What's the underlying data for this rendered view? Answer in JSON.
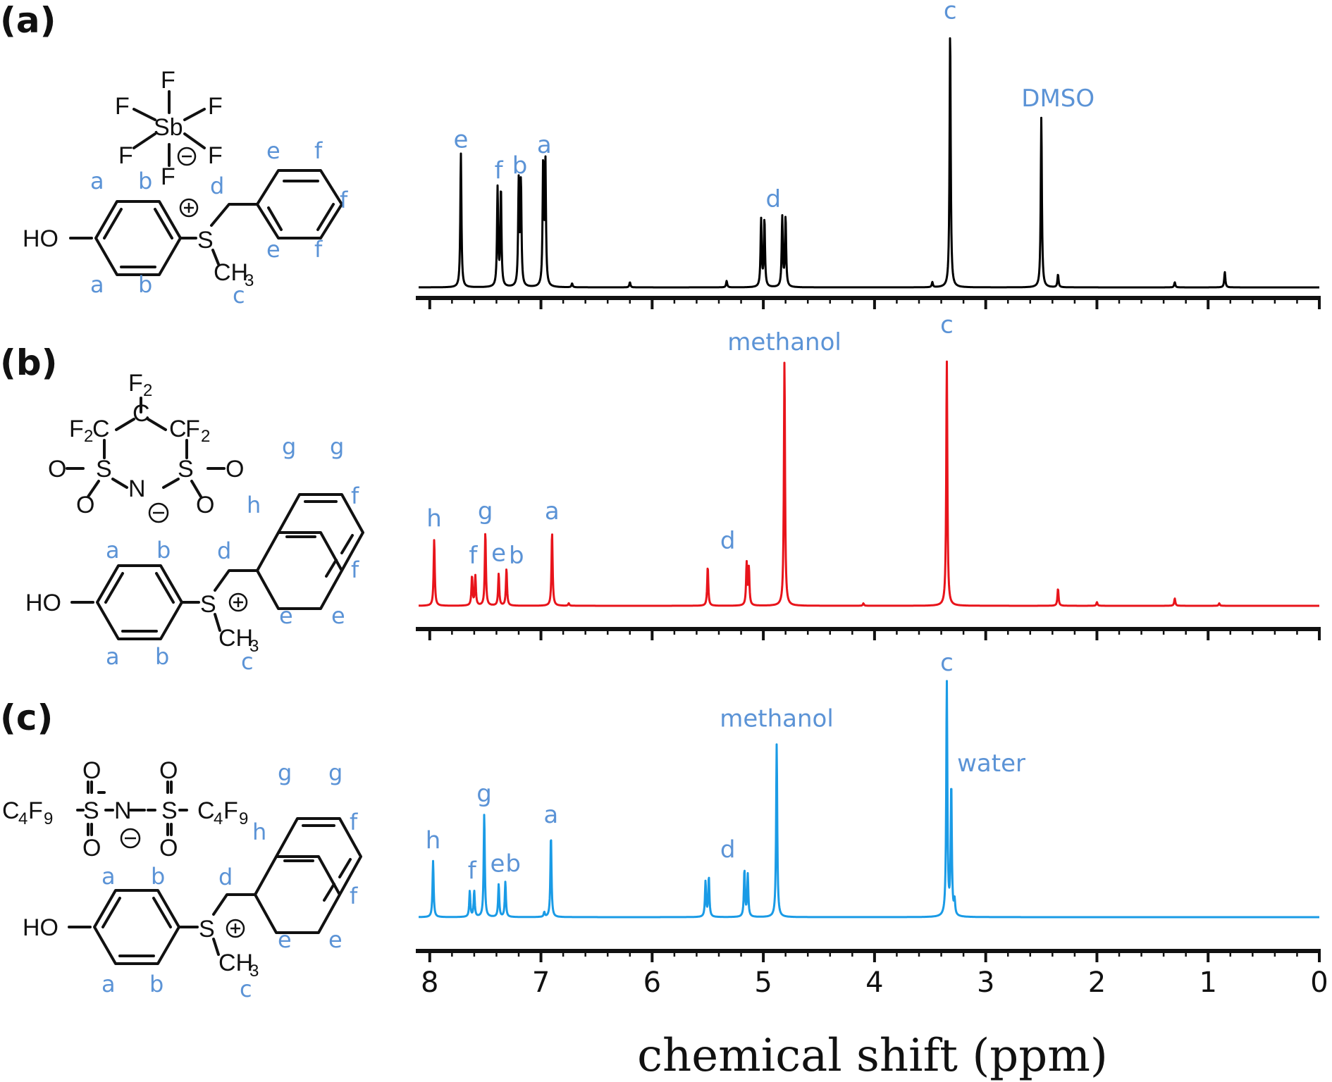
{
  "figure": {
    "panel_labels": [
      "(a)",
      "(b)",
      "(c)"
    ],
    "x_axis_title": "chemical shift (ppm)"
  },
  "structures": {
    "a": {
      "anion_atoms": [
        "F",
        "F",
        "F",
        "Sb",
        "F",
        "F",
        "F"
      ],
      "cation_atoms": [
        "HO",
        "S",
        "CH",
        "3"
      ],
      "proton_labels": [
        "a",
        "b",
        "a",
        "b",
        "d",
        "c",
        "e",
        "f",
        "f",
        "e",
        "f"
      ]
    },
    "b": {
      "anion_atoms": [
        "F",
        "2",
        "C",
        "F",
        "2",
        "C",
        "C",
        "F",
        "2",
        "O",
        "S",
        "S",
        "O",
        "N",
        "O",
        "O"
      ],
      "cation_atoms": [
        "HO",
        "S",
        "CH",
        "3"
      ],
      "proton_labels": [
        "a",
        "b",
        "a",
        "b",
        "d",
        "c",
        "g",
        "g",
        "h",
        "f",
        "f",
        "e",
        "e"
      ]
    },
    "c": {
      "anion_atoms": [
        "C",
        "4",
        "F",
        "9",
        "S",
        "N",
        "S",
        "C",
        "4",
        "F",
        "9",
        "O",
        "O",
        "O",
        "O"
      ],
      "cation_atoms": [
        "HO",
        "S",
        "CH",
        "3"
      ],
      "proton_labels": [
        "a",
        "b",
        "a",
        "b",
        "d",
        "c",
        "g",
        "g",
        "h",
        "f",
        "f",
        "e",
        "e"
      ]
    }
  },
  "chart_data": [
    {
      "type": "line",
      "panel": "(a)",
      "color": "#000000",
      "xlabel": "chemical shift (ppm)",
      "xlim": [
        8.1,
        0
      ],
      "x_ticks": [
        8,
        7,
        6,
        5,
        4,
        3,
        2,
        1,
        0
      ],
      "y_range": [
        0,
        1
      ],
      "peaks": [
        {
          "ppm": 7.72,
          "height": 0.52
        },
        {
          "ppm": 7.39,
          "height": 0.38
        },
        {
          "ppm": 7.36,
          "height": 0.38
        },
        {
          "ppm": 7.2,
          "height": 0.4
        },
        {
          "ppm": 7.18,
          "height": 0.4
        },
        {
          "ppm": 6.98,
          "height": 0.48
        },
        {
          "ppm": 6.96,
          "height": 0.48
        },
        {
          "ppm": 6.72,
          "height": 0.015
        },
        {
          "ppm": 6.2,
          "height": 0.02
        },
        {
          "ppm": 5.33,
          "height": 0.025
        },
        {
          "ppm": 5.02,
          "height": 0.26
        },
        {
          "ppm": 4.99,
          "height": 0.26
        },
        {
          "ppm": 4.83,
          "height": 0.27
        },
        {
          "ppm": 4.8,
          "height": 0.27
        },
        {
          "ppm": 3.48,
          "height": 0.02
        },
        {
          "ppm": 3.32,
          "height": 1.0
        },
        {
          "ppm": 2.5,
          "height": 0.66
        },
        {
          "ppm": 2.35,
          "height": 0.05
        },
        {
          "ppm": 1.3,
          "height": 0.02
        },
        {
          "ppm": 0.85,
          "height": 0.06
        }
      ],
      "annotations": [
        {
          "text": "e",
          "ppm": 7.72,
          "height": 0.52
        },
        {
          "text": "f",
          "ppm": 7.38,
          "height": 0.4
        },
        {
          "text": "b",
          "ppm": 7.19,
          "height": 0.42
        },
        {
          "text": "a",
          "ppm": 6.97,
          "height": 0.5
        },
        {
          "text": "d",
          "ppm": 4.91,
          "height": 0.29
        },
        {
          "text": "c",
          "ppm": 3.32,
          "height": 1.02
        },
        {
          "text": "DMSO",
          "ppm": 2.35,
          "height": 0.68
        }
      ]
    },
    {
      "type": "line",
      "panel": "(b)",
      "color": "#e8141b",
      "xlabel": "chemical shift (ppm)",
      "xlim": [
        8.1,
        0
      ],
      "x_ticks": [
        8,
        7,
        6,
        5,
        4,
        3,
        2,
        1,
        0
      ],
      "y_range": [
        0,
        1
      ],
      "peaks": [
        {
          "ppm": 7.96,
          "height": 0.27
        },
        {
          "ppm": 7.62,
          "height": 0.12
        },
        {
          "ppm": 7.59,
          "height": 0.12
        },
        {
          "ppm": 7.5,
          "height": 0.3
        },
        {
          "ppm": 7.38,
          "height": 0.13
        },
        {
          "ppm": 7.31,
          "height": 0.15
        },
        {
          "ppm": 6.9,
          "height": 0.3
        },
        {
          "ppm": 6.75,
          "height": 0.01
        },
        {
          "ppm": 5.5,
          "height": 0.16
        },
        {
          "ppm": 5.15,
          "height": 0.17
        },
        {
          "ppm": 5.13,
          "height": 0.15
        },
        {
          "ppm": 4.81,
          "height": 1.0
        },
        {
          "ppm": 4.1,
          "height": 0.01
        },
        {
          "ppm": 3.35,
          "height": 1.0
        },
        {
          "ppm": 2.35,
          "height": 0.07
        },
        {
          "ppm": 2.0,
          "height": 0.015
        },
        {
          "ppm": 1.3,
          "height": 0.03
        },
        {
          "ppm": 0.9,
          "height": 0.01
        }
      ],
      "annotations": [
        {
          "text": "h",
          "ppm": 7.96,
          "height": 0.3
        },
        {
          "text": "f",
          "ppm": 7.61,
          "height": 0.15
        },
        {
          "text": "g",
          "ppm": 7.5,
          "height": 0.33
        },
        {
          "text": "e",
          "ppm": 7.38,
          "height": 0.16
        },
        {
          "text": "b",
          "ppm": 7.22,
          "height": 0.15
        },
        {
          "text": "a",
          "ppm": 6.9,
          "height": 0.33
        },
        {
          "text": "d",
          "ppm": 5.32,
          "height": 0.21
        },
        {
          "text": "methanol",
          "ppm": 4.81,
          "height": 1.02
        },
        {
          "text": "c",
          "ppm": 3.35,
          "height": 1.09
        }
      ]
    },
    {
      "type": "line",
      "panel": "(c)",
      "color": "#1a9be6",
      "xlabel": "chemical shift (ppm)",
      "xlim": [
        8.1,
        0
      ],
      "x_ticks": [
        8,
        7,
        6,
        5,
        4,
        3,
        2,
        1,
        0
      ],
      "y_range": [
        0,
        1
      ],
      "peaks": [
        {
          "ppm": 7.97,
          "height": 0.24
        },
        {
          "ppm": 7.64,
          "height": 0.11
        },
        {
          "ppm": 7.6,
          "height": 0.11
        },
        {
          "ppm": 7.51,
          "height": 0.44
        },
        {
          "ppm": 7.38,
          "height": 0.14
        },
        {
          "ppm": 7.32,
          "height": 0.15
        },
        {
          "ppm": 6.97,
          "height": 0.02
        },
        {
          "ppm": 6.91,
          "height": 0.35
        },
        {
          "ppm": 5.52,
          "height": 0.15
        },
        {
          "ppm": 5.49,
          "height": 0.17
        },
        {
          "ppm": 5.17,
          "height": 0.2
        },
        {
          "ppm": 5.14,
          "height": 0.18
        },
        {
          "ppm": 4.88,
          "height": 0.74
        },
        {
          "ppm": 3.35,
          "height": 1.0
        },
        {
          "ppm": 3.31,
          "height": 0.56
        },
        {
          "ppm": 3.28,
          "height": 0.06
        }
      ],
      "annotations": [
        {
          "text": "h",
          "ppm": 7.97,
          "height": 0.27
        },
        {
          "text": "f",
          "ppm": 7.62,
          "height": 0.14
        },
        {
          "text": "g",
          "ppm": 7.51,
          "height": 0.47
        },
        {
          "text": "e",
          "ppm": 7.39,
          "height": 0.17
        },
        {
          "text": "b",
          "ppm": 7.25,
          "height": 0.17
        },
        {
          "text": "a",
          "ppm": 6.91,
          "height": 0.38
        },
        {
          "text": "d",
          "ppm": 5.32,
          "height": 0.23
        },
        {
          "text": "methanol",
          "ppm": 4.88,
          "height": 0.79
        },
        {
          "text": "c",
          "ppm": 3.35,
          "height": 1.03
        },
        {
          "text": "water",
          "ppm": 2.95,
          "height": 0.6
        }
      ]
    }
  ]
}
